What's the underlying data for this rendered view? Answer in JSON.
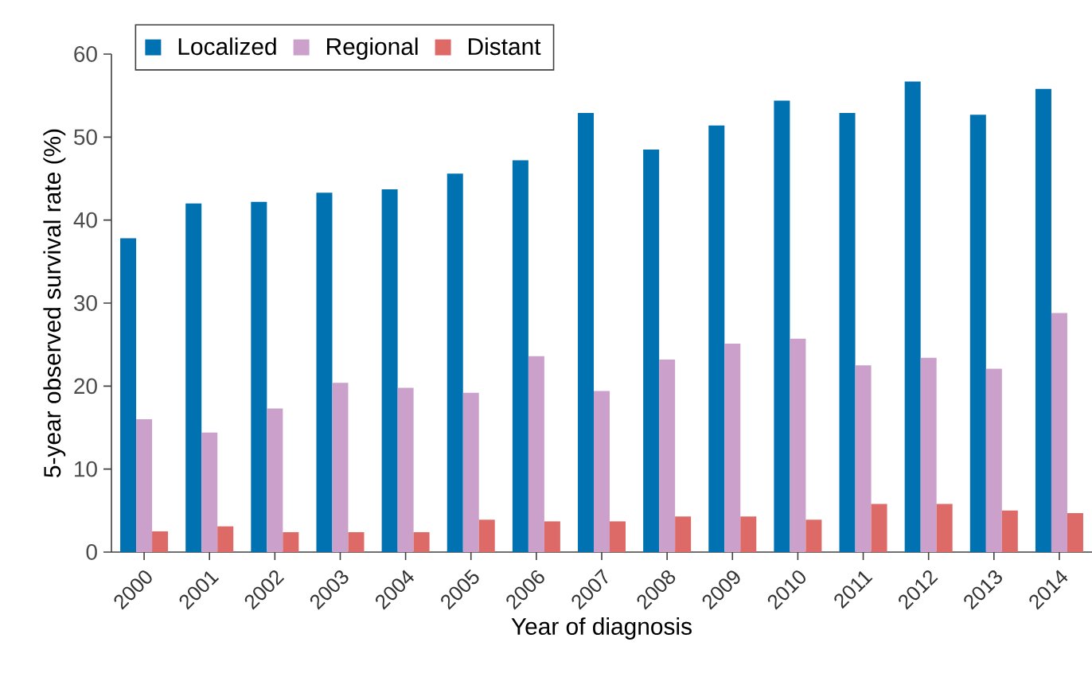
{
  "chart_data": {
    "type": "bar",
    "xlabel": "Year of diagnosis",
    "ylabel": "5-year observed survival rate (%)",
    "categories": [
      "2000",
      "2001",
      "2002",
      "2003",
      "2004",
      "2005",
      "2006",
      "2007",
      "2008",
      "2009",
      "2010",
      "2011",
      "2012",
      "2013",
      "2014"
    ],
    "series": [
      {
        "name": "Localized",
        "color": "#0072b2",
        "values": [
          37.8,
          42.0,
          42.2,
          43.3,
          43.7,
          45.6,
          47.2,
          52.9,
          48.5,
          51.4,
          54.4,
          52.9,
          56.7,
          52.7,
          55.8
        ]
      },
      {
        "name": "Regional",
        "color": "#cba1cb",
        "values": [
          16.0,
          14.4,
          17.3,
          20.4,
          19.8,
          19.2,
          23.6,
          19.4,
          23.2,
          25.1,
          25.7,
          22.5,
          23.4,
          22.1,
          28.8
        ]
      },
      {
        "name": "Distant",
        "color": "#de6a68",
        "values": [
          2.5,
          3.1,
          2.4,
          2.4,
          2.4,
          3.9,
          3.7,
          3.7,
          4.3,
          4.3,
          3.9,
          5.8,
          5.8,
          5.0,
          4.7
        ]
      }
    ],
    "ylim": [
      0,
      60
    ],
    "yticks": [
      0,
      10,
      20,
      30,
      40,
      50,
      60
    ],
    "grid": false,
    "legend": "top left"
  }
}
